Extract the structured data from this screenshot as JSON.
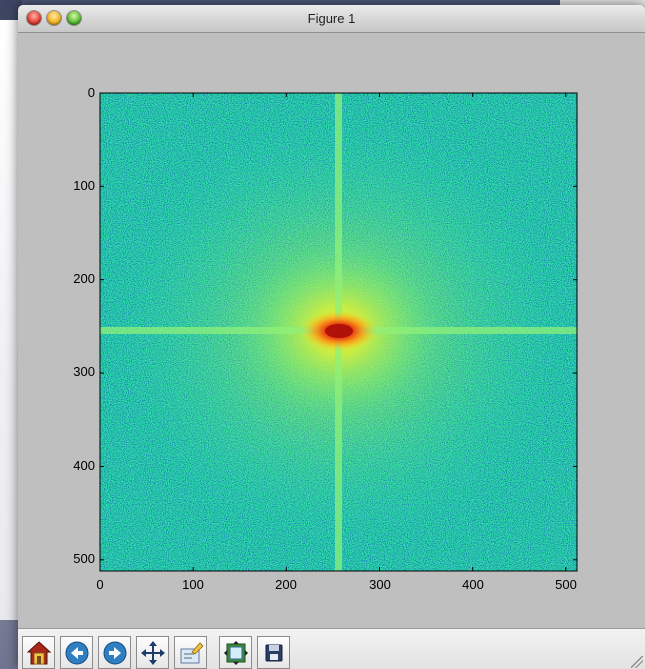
{
  "window": {
    "title": "Figure 1"
  },
  "plot": {
    "type": "image",
    "colormap": "jet",
    "y_ticks": [
      "0",
      "100",
      "200",
      "300",
      "400",
      "500"
    ],
    "x_ticks": [
      "0",
      "100",
      "200",
      "300",
      "400",
      "500"
    ],
    "xlim": [
      0,
      512
    ],
    "ylim": [
      512,
      0
    ],
    "description_values": {
      "image_size": [
        512,
        512
      ],
      "peak_center": [
        256,
        256
      ]
    }
  },
  "chart_data": {
    "type": "heatmap",
    "title": "",
    "xlabel": "",
    "ylabel": "",
    "x_ticks": [
      0,
      100,
      200,
      300,
      400,
      500
    ],
    "y_ticks": [
      0,
      100,
      200,
      300,
      400,
      500
    ],
    "xlim": [
      0,
      512
    ],
    "ylim": [
      512,
      0
    ],
    "colormap": "jet",
    "peak": {
      "x": 256,
      "y": 256
    }
  },
  "toolbar": {
    "buttons": [
      {
        "name": "home-button",
        "icon": "home-icon"
      },
      {
        "name": "back-button",
        "icon": "back-arrow-icon"
      },
      {
        "name": "forward-button",
        "icon": "forward-arrow-icon"
      },
      {
        "name": "pan-button",
        "icon": "pan-arrows-icon"
      },
      {
        "name": "zoom-button",
        "icon": "zoom-rect-icon"
      },
      {
        "name": "subplots-button",
        "icon": "subplots-config-icon"
      },
      {
        "name": "save-button",
        "icon": "floppy-disk-icon"
      }
    ]
  },
  "colors": {
    "background_green": "#2ee0a6",
    "center_yellow": "#e8f23a",
    "center_red": "#d81e12"
  }
}
